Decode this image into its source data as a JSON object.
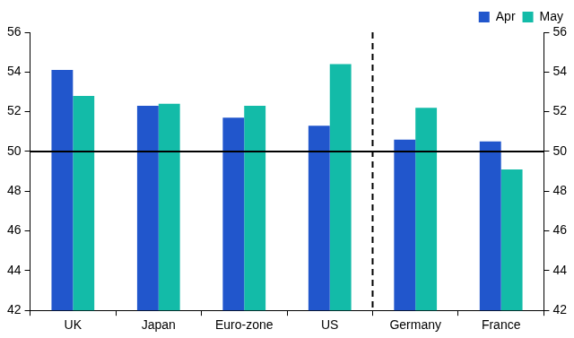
{
  "chart_data": {
    "type": "bar",
    "categories": [
      "UK",
      "Japan",
      "Euro-zone",
      "US",
      "Germany",
      "France"
    ],
    "series": [
      {
        "name": "Apr",
        "color": "#2156cc",
        "values": [
          54.1,
          52.3,
          51.7,
          51.3,
          50.6,
          50.5
        ]
      },
      {
        "name": "May",
        "color": "#13bba8",
        "values": [
          52.8,
          52.4,
          52.3,
          54.4,
          52.2,
          49.1
        ]
      }
    ],
    "ylim": [
      42,
      56
    ],
    "yticks": [
      42,
      44,
      46,
      48,
      50,
      52,
      54,
      56
    ],
    "y2lim": [
      42,
      56
    ],
    "y2ticks": [
      42,
      44,
      46,
      48,
      50,
      52,
      54,
      56
    ],
    "hline": 50,
    "grid": false,
    "legend": "top-right"
  }
}
